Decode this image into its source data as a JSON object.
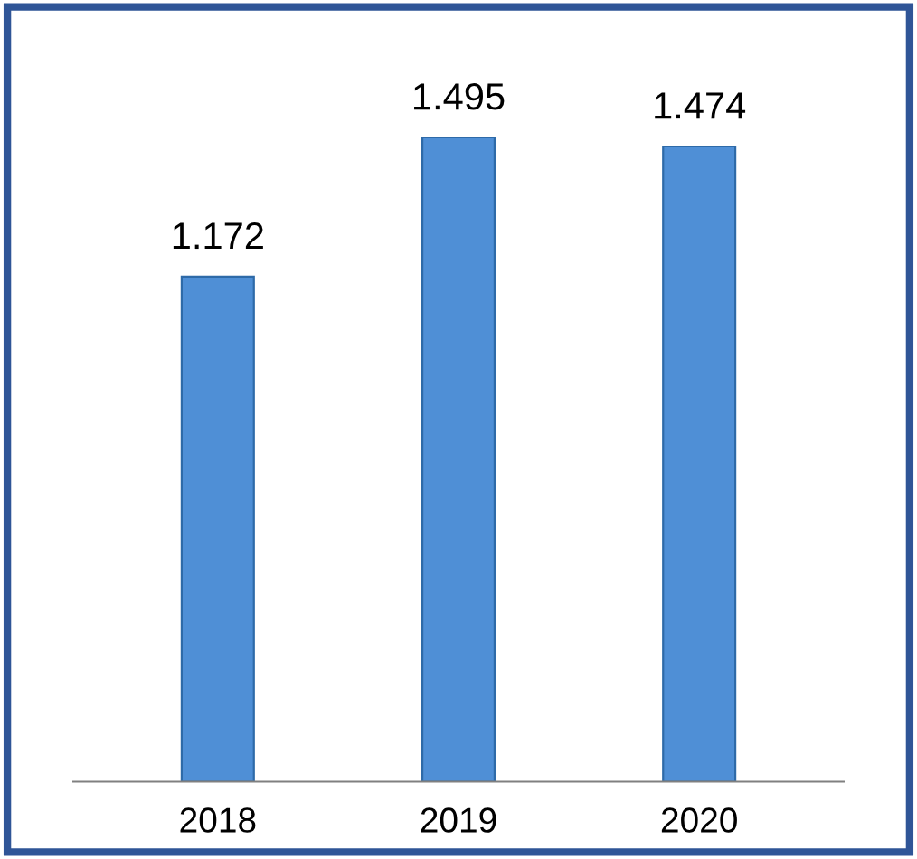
{
  "chart_data": {
    "type": "bar",
    "categories": [
      "2018",
      "2019",
      "2020"
    ],
    "values": [
      1.172,
      1.495,
      1.474
    ],
    "color": "#4f8fd6",
    "data_labels": true,
    "grid": false,
    "legend": false
  }
}
